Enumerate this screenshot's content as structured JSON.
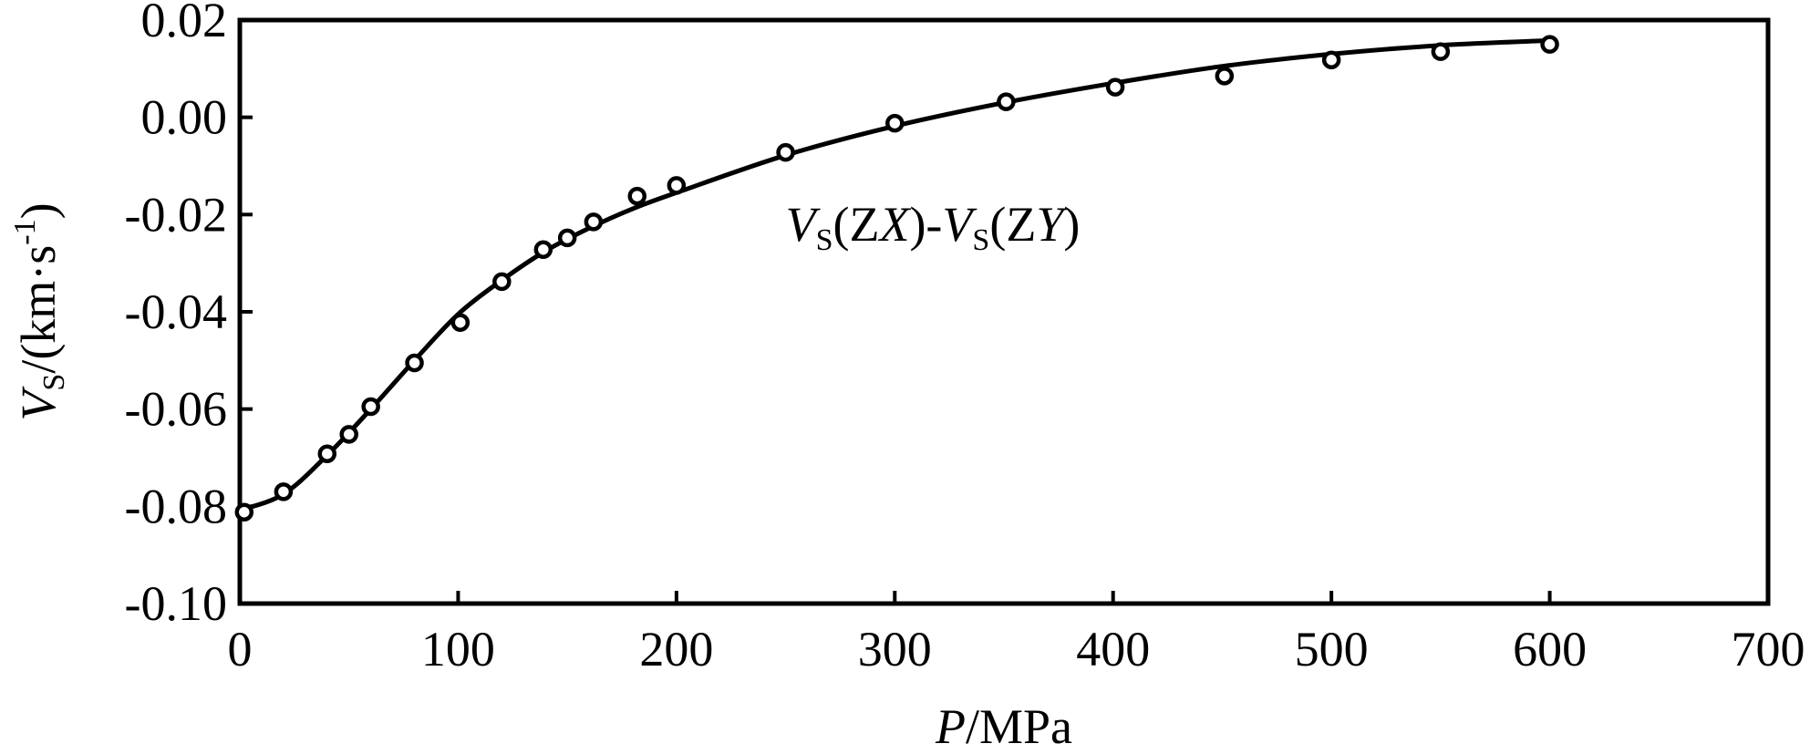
{
  "chart_data": {
    "type": "scatter",
    "title": "",
    "xlabel": {
      "var": "P",
      "unit": "/MPa"
    },
    "ylabel": {
      "var": "V",
      "sub": "S",
      "unit": "/(km·s",
      "sup": "-1",
      "close": ")"
    },
    "xlim": [
      0,
      700
    ],
    "ylim": [
      -0.1,
      0.02
    ],
    "xticks": [
      0,
      100,
      200,
      300,
      400,
      500,
      600,
      700
    ],
    "xtick_labels": [
      "0",
      "100",
      "200",
      "300",
      "400",
      "500",
      "600",
      "700"
    ],
    "yticks": [
      0.02,
      0.0,
      -0.02,
      -0.04,
      -0.06,
      -0.08,
      -0.1
    ],
    "ytick_labels": [
      "0.02",
      "0.00",
      "-0.02",
      "-0.04",
      "-0.06",
      "-0.08",
      "-0.10"
    ],
    "grid": false,
    "annotation": {
      "parts": [
        "V",
        "S",
        "(Z",
        "X",
        ")-",
        "V",
        "S",
        "(Z",
        "Y",
        ")"
      ],
      "x": 250,
      "y": -0.022
    },
    "series": [
      {
        "marker": "circle",
        "x": [
          2,
          20,
          40,
          50,
          60,
          80,
          101,
          120,
          139,
          150,
          162,
          182,
          200,
          250,
          300,
          351,
          401,
          451,
          500,
          550,
          600
        ],
        "y": [
          -0.0812,
          -0.077,
          -0.0692,
          -0.0652,
          -0.0595,
          -0.0505,
          -0.0422,
          -0.0338,
          -0.0272,
          -0.0248,
          -0.0215,
          -0.0162,
          -0.014,
          -0.0072,
          -0.0012,
          0.0032,
          0.0062,
          0.0085,
          0.0118,
          0.0135,
          0.015
        ]
      },
      {
        "line": "solid",
        "x": [
          0,
          20,
          40,
          60,
          80,
          100,
          120,
          140,
          160,
          180,
          200,
          250,
          300,
          350,
          400,
          450,
          500,
          550,
          600
        ],
        "y": [
          -0.0808,
          -0.0775,
          -0.0695,
          -0.06,
          -0.05,
          -0.0405,
          -0.0335,
          -0.0275,
          -0.0228,
          -0.0188,
          -0.0155,
          -0.0078,
          -0.0018,
          0.003,
          0.007,
          0.0105,
          0.013,
          0.0148,
          0.0158
        ]
      }
    ]
  }
}
